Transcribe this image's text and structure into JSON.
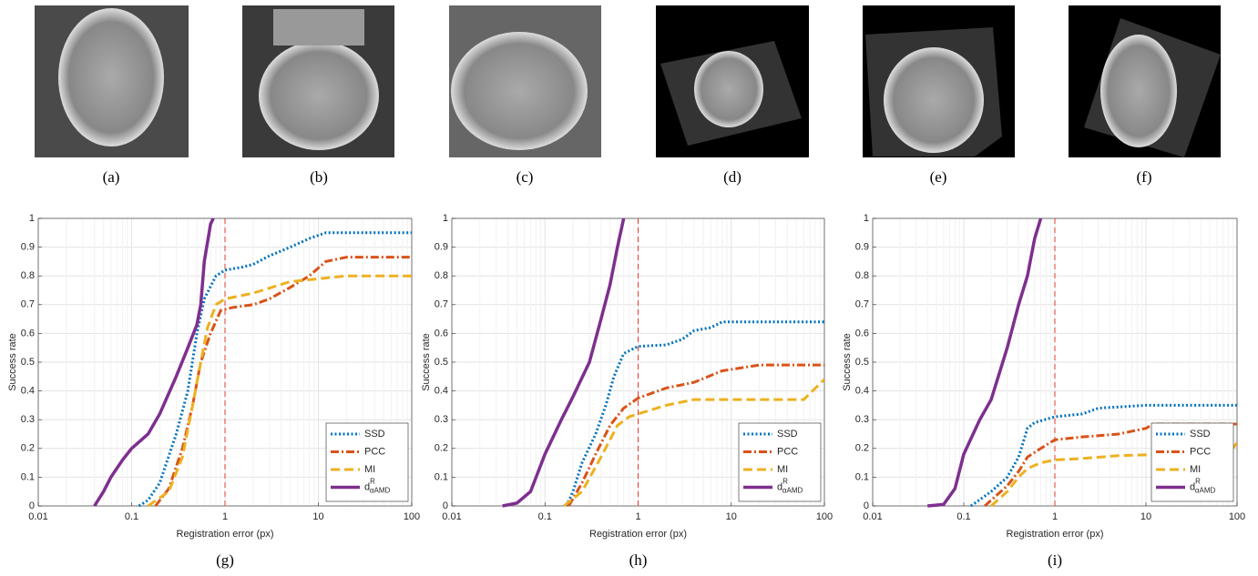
{
  "images": [
    {
      "label": "(a)"
    },
    {
      "label": "(b)"
    },
    {
      "label": "(c)"
    },
    {
      "label": "(d)"
    },
    {
      "label": "(e)"
    },
    {
      "label": "(f)"
    }
  ],
  "chart_data": [
    {
      "type": "line",
      "panel_label": "(g)",
      "xlabel": "Registration error (px)",
      "ylabel": "Success rate",
      "xscale": "log",
      "xlim": [
        0.01,
        100
      ],
      "xticks": [
        0.01,
        0.1,
        1,
        10,
        100
      ],
      "ylim": [
        0,
        1
      ],
      "yticks": [
        0,
        0.1,
        0.2,
        0.3,
        0.4,
        0.5,
        0.6,
        0.7,
        0.8,
        0.9,
        1
      ],
      "grid": true,
      "legend": "lower right",
      "reference_line": 1,
      "series": [
        {
          "name": "SSD",
          "color": "#0072bd",
          "dash": "dotted",
          "x": [
            0.12,
            0.15,
            0.2,
            0.3,
            0.4,
            0.5,
            0.6,
            0.8,
            1,
            1.5,
            2,
            3,
            5,
            8,
            12,
            100
          ],
          "values": [
            0,
            0.02,
            0.08,
            0.25,
            0.4,
            0.6,
            0.72,
            0.8,
            0.82,
            0.83,
            0.84,
            0.87,
            0.9,
            0.93,
            0.95,
            0.95
          ]
        },
        {
          "name": "PCC",
          "color": "#d95319",
          "dash": "dashdot",
          "x": [
            0.18,
            0.25,
            0.35,
            0.45,
            0.55,
            0.7,
            0.9,
            1.2,
            2,
            3,
            5,
            8,
            12,
            20,
            100
          ],
          "values": [
            0,
            0.06,
            0.2,
            0.35,
            0.5,
            0.6,
            0.68,
            0.69,
            0.7,
            0.72,
            0.76,
            0.8,
            0.85,
            0.865,
            0.865
          ]
        },
        {
          "name": "MI",
          "color": "#edb120",
          "dash": "dashed",
          "x": [
            0.15,
            0.25,
            0.35,
            0.45,
            0.55,
            0.65,
            0.8,
            1,
            2,
            5,
            10,
            20,
            100
          ],
          "values": [
            0,
            0.05,
            0.17,
            0.35,
            0.5,
            0.62,
            0.7,
            0.72,
            0.74,
            0.78,
            0.79,
            0.8,
            0.8
          ]
        },
        {
          "name": "d",
          "superscript": "R",
          "subscript": "αAMD",
          "color": "#7e2f8e",
          "dash": "solid",
          "x": [
            0.04,
            0.05,
            0.06,
            0.08,
            0.1,
            0.15,
            0.2,
            0.3,
            0.4,
            0.5,
            0.55,
            0.6,
            0.7,
            0.75
          ],
          "values": [
            0,
            0.05,
            0.1,
            0.16,
            0.2,
            0.25,
            0.32,
            0.45,
            0.55,
            0.63,
            0.7,
            0.85,
            0.98,
            1
          ]
        }
      ]
    },
    {
      "type": "line",
      "panel_label": "(h)",
      "xlabel": "Registration error (px)",
      "ylabel": "Success rate",
      "xscale": "log",
      "xlim": [
        0.01,
        100
      ],
      "xticks": [
        0.01,
        0.1,
        1,
        10,
        100
      ],
      "ylim": [
        0,
        1
      ],
      "yticks": [
        0,
        0.1,
        0.2,
        0.3,
        0.4,
        0.5,
        0.6,
        0.7,
        0.8,
        0.9,
        1
      ],
      "grid": true,
      "legend": "lower right",
      "reference_line": 1,
      "series": [
        {
          "name": "SSD",
          "color": "#0072bd",
          "dash": "dotted",
          "x": [
            0.17,
            0.2,
            0.25,
            0.35,
            0.45,
            0.55,
            0.7,
            1,
            2,
            3,
            4,
            6,
            8,
            100
          ],
          "values": [
            0,
            0.05,
            0.15,
            0.25,
            0.35,
            0.45,
            0.53,
            0.555,
            0.56,
            0.58,
            0.61,
            0.62,
            0.64,
            0.64
          ]
        },
        {
          "name": "PCC",
          "color": "#d95319",
          "dash": "dashdot",
          "x": [
            0.18,
            0.25,
            0.35,
            0.5,
            0.7,
            1,
            2,
            4,
            8,
            20,
            100
          ],
          "values": [
            0,
            0.08,
            0.18,
            0.28,
            0.34,
            0.375,
            0.41,
            0.43,
            0.47,
            0.49,
            0.49
          ]
        },
        {
          "name": "MI",
          "color": "#edb120",
          "dash": "dashed",
          "x": [
            0.16,
            0.25,
            0.4,
            0.6,
            0.8,
            1,
            2,
            4,
            10,
            60,
            100
          ],
          "values": [
            0,
            0.05,
            0.17,
            0.28,
            0.31,
            0.32,
            0.35,
            0.37,
            0.37,
            0.37,
            0.44
          ]
        },
        {
          "name": "d",
          "superscript": "R",
          "subscript": "αAMD",
          "color": "#7e2f8e",
          "dash": "solid",
          "x": [
            0.035,
            0.05,
            0.07,
            0.1,
            0.15,
            0.2,
            0.3,
            0.4,
            0.5,
            0.6,
            0.7
          ],
          "values": [
            0,
            0.01,
            0.05,
            0.18,
            0.3,
            0.38,
            0.5,
            0.65,
            0.77,
            0.9,
            1
          ]
        }
      ]
    },
    {
      "type": "line",
      "panel_label": "(i)",
      "xlabel": "Registration error (px)",
      "ylabel": "Success rate",
      "xscale": "log",
      "xlim": [
        0.01,
        100
      ],
      "xticks": [
        0.01,
        0.1,
        1,
        10,
        100
      ],
      "ylim": [
        0,
        1
      ],
      "yticks": [
        0,
        0.1,
        0.2,
        0.3,
        0.4,
        0.5,
        0.6,
        0.7,
        0.8,
        0.9,
        1
      ],
      "grid": true,
      "legend": "lower right",
      "reference_line": 1,
      "series": [
        {
          "name": "SSD",
          "color": "#0072bd",
          "dash": "dotted",
          "x": [
            0.12,
            0.2,
            0.3,
            0.4,
            0.5,
            0.6,
            1,
            2,
            3,
            10,
            100
          ],
          "values": [
            0,
            0.05,
            0.1,
            0.17,
            0.27,
            0.29,
            0.31,
            0.32,
            0.34,
            0.35,
            0.35
          ]
        },
        {
          "name": "PCC",
          "color": "#d95319",
          "dash": "dashdot",
          "x": [
            0.17,
            0.3,
            0.4,
            0.5,
            0.7,
            1,
            2,
            5,
            10,
            12,
            100
          ],
          "values": [
            0,
            0.07,
            0.12,
            0.17,
            0.2,
            0.23,
            0.24,
            0.25,
            0.27,
            0.285,
            0.285
          ]
        },
        {
          "name": "MI",
          "color": "#edb120",
          "dash": "dashed",
          "x": [
            0.2,
            0.3,
            0.4,
            0.5,
            0.7,
            1,
            2,
            5,
            20,
            80,
            100
          ],
          "values": [
            0,
            0.05,
            0.1,
            0.13,
            0.15,
            0.16,
            0.165,
            0.175,
            0.18,
            0.18,
            0.22
          ]
        },
        {
          "name": "d",
          "superscript": "R",
          "subscript": "αAMD",
          "color": "#7e2f8e",
          "dash": "solid",
          "x": [
            0.04,
            0.06,
            0.08,
            0.1,
            0.15,
            0.2,
            0.3,
            0.4,
            0.5,
            0.6,
            0.7
          ],
          "values": [
            0,
            0.005,
            0.06,
            0.18,
            0.3,
            0.37,
            0.55,
            0.7,
            0.8,
            0.93,
            1
          ]
        }
      ]
    }
  ]
}
